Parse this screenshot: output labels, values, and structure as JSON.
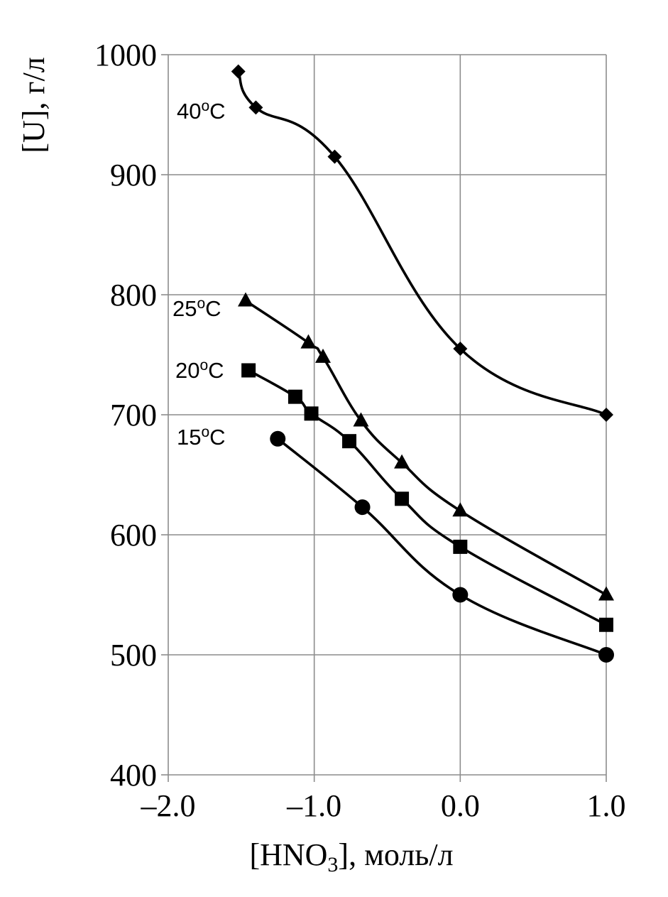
{
  "chart_data": {
    "type": "line",
    "xlim": [
      -2.0,
      1.0
    ],
    "ylim": [
      400,
      1000
    ],
    "x_ticks": [
      -2.0,
      -1.0,
      0.0,
      1.0
    ],
    "x_tick_labels": [
      "–2.0",
      "–1.0",
      "0.0",
      "1.0"
    ],
    "y_ticks": [
      400,
      500,
      600,
      700,
      800,
      900,
      1000
    ],
    "y_tick_labels": [
      "400",
      "500",
      "600",
      "700",
      "800",
      "900",
      "1000"
    ],
    "grid": true,
    "xlabel": {
      "pre": "[HNO",
      "sub": "3",
      "post": "], моль/л"
    },
    "ylabel": "[U], г/л",
    "series": [
      {
        "name": {
          "num": "40",
          "sup": "o",
          "unit": "C"
        },
        "marker": "diamond",
        "x": [
          -1.52,
          -1.4,
          -0.86,
          0.0,
          1.0
        ],
        "y": [
          986,
          956,
          915,
          755,
          700
        ]
      },
      {
        "name": {
          "num": "25",
          "sup": "o",
          "unit": "C"
        },
        "marker": "triangle",
        "x": [
          -1.47,
          -1.04,
          -0.94,
          -0.68,
          -0.4,
          0.0,
          1.0
        ],
        "y": [
          795,
          760,
          748,
          695,
          660,
          620,
          550
        ]
      },
      {
        "name": {
          "num": "20",
          "sup": "o",
          "unit": "C"
        },
        "marker": "square",
        "x": [
          -1.45,
          -1.13,
          -1.02,
          -0.76,
          -0.4,
          0.0,
          1.0
        ],
        "y": [
          737,
          715,
          701,
          678,
          630,
          590,
          525
        ]
      },
      {
        "name": {
          "num": "15",
          "sup": "o",
          "unit": "C"
        },
        "marker": "circle",
        "x": [
          -1.25,
          -0.67,
          0.0,
          1.0
        ],
        "y": [
          680,
          623,
          550,
          500
        ]
      }
    ]
  }
}
